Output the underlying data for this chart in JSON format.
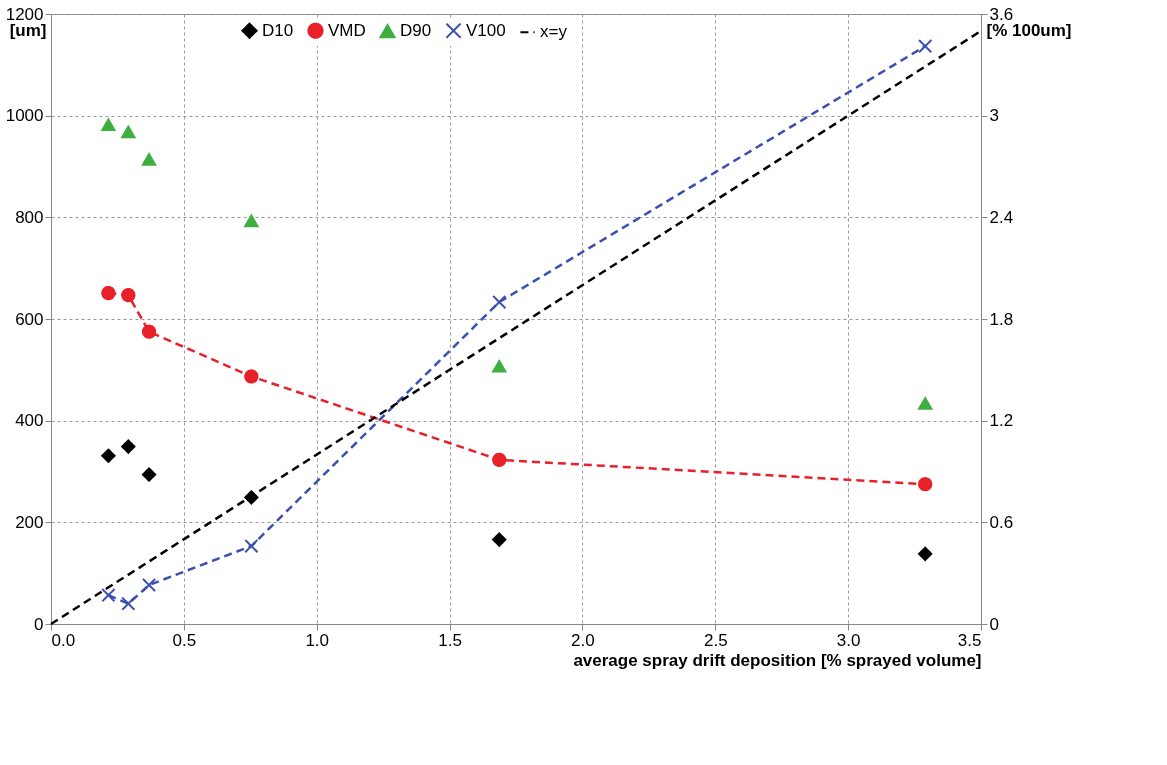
{
  "chart_data": {
    "type": "scatter",
    "xlabel": "average spray drift deposition  [% sprayed volume]",
    "ylabel": "[um]",
    "y2label": "[% 100um]",
    "xlim": [
      0,
      3.5
    ],
    "xticks": [
      {
        "value": 0,
        "label": "0.0"
      },
      {
        "value": 0.5,
        "label": "0.5"
      },
      {
        "value": 1,
        "label": "1.0"
      },
      {
        "value": 1.5,
        "label": "1.5"
      },
      {
        "value": 2,
        "label": "2.0"
      },
      {
        "value": 2.5,
        "label": "2.5"
      },
      {
        "value": 3,
        "label": "3.0"
      },
      {
        "value": 3.5,
        "label": "3.5"
      }
    ],
    "ylim": [
      0,
      1200
    ],
    "yticks": [
      0,
      200,
      400,
      600,
      800,
      1000,
      1200
    ],
    "y2lim": [
      0,
      3.6
    ],
    "y2ticks": [
      0,
      0.6,
      1.2,
      1.8,
      2.4,
      3,
      3.6
    ],
    "x": [
      0.216,
      0.291,
      0.369,
      0.754,
      1.687,
      3.29
    ],
    "grid": true,
    "legend": "top",
    "series": [
      {
        "name": "D10",
        "marker": "diamond",
        "color": "#000000",
        "values": [
          331,
          349,
          294,
          249,
          166,
          138
        ]
      },
      {
        "name": "VMD",
        "type": "line",
        "marker": "circle",
        "line_style": "dashed",
        "color": "#e8202a",
        "values": [
          651,
          647,
          575,
          487,
          323,
          275
        ]
      },
      {
        "name": "D90",
        "marker": "triangle",
        "color": "#3fae3f",
        "values": [
          982,
          968,
          914,
          793,
          507,
          434
        ]
      },
      {
        "name": "V100",
        "type": "line",
        "marker": "cross",
        "line_style": "dashed",
        "axis": "y2",
        "color": "#3a4fb0",
        "values": [
          0.17,
          0.12,
          0.23,
          0.46,
          1.9,
          3.41
        ]
      },
      {
        "name": "x=y",
        "type": "line",
        "marker": "none",
        "line_style": "dashed",
        "axis": "y2",
        "color": "#000000",
        "x": [
          0,
          3.5
        ],
        "values": [
          0,
          3.5
        ]
      }
    ]
  }
}
